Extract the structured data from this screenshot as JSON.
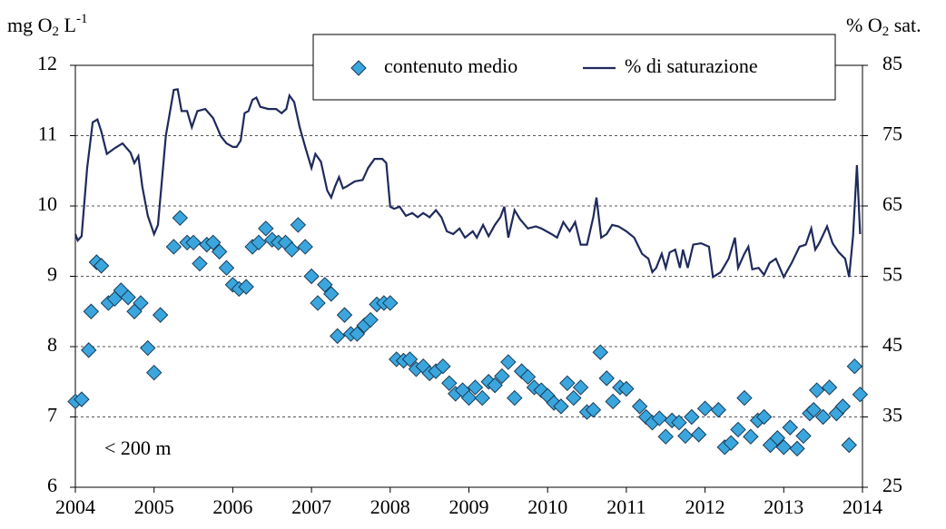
{
  "chart_data": {
    "type": "combo",
    "ylabel": [
      "mg O",
      "2",
      " L",
      "-1"
    ],
    "y2label": [
      "% O",
      "2",
      " sat."
    ],
    "annotation": "< 200 m",
    "xlim": [
      2004,
      2014
    ],
    "xticks": [
      2004,
      2005,
      2006,
      2007,
      2008,
      2009,
      2010,
      2011,
      2012,
      2013,
      2014
    ],
    "ylim": [
      6,
      12
    ],
    "yticks": [
      6,
      7,
      8,
      9,
      10,
      11,
      12
    ],
    "y2lim": [
      25,
      85
    ],
    "y2ticks": [
      25,
      35,
      45,
      55,
      65,
      75,
      85
    ],
    "grid": true,
    "series": [
      {
        "name": "contenuto medio",
        "type": "scatter",
        "color": "#3aa6dd",
        "x": [
          2004.0,
          2004.08,
          2004.17,
          2004.2,
          2004.27,
          2004.33,
          2004.42,
          2004.5,
          2004.58,
          2004.67,
          2004.75,
          2004.83,
          2004.92,
          2005.0,
          2005.08,
          2005.25,
          2005.33,
          2005.42,
          2005.5,
          2005.58,
          2005.67,
          2005.75,
          2005.83,
          2005.92,
          2006.0,
          2006.08,
          2006.17,
          2006.25,
          2006.33,
          2006.42,
          2006.5,
          2006.58,
          2006.67,
          2006.75,
          2006.83,
          2006.92,
          2007.0,
          2007.08,
          2007.17,
          2007.25,
          2007.33,
          2007.42,
          2007.5,
          2007.58,
          2007.67,
          2007.75,
          2007.83,
          2007.92,
          2008.0,
          2008.08,
          2008.17,
          2008.25,
          2008.33,
          2008.42,
          2008.5,
          2008.58,
          2008.67,
          2008.75,
          2008.83,
          2008.92,
          2009.0,
          2009.08,
          2009.17,
          2009.25,
          2009.33,
          2009.42,
          2009.5,
          2009.58,
          2009.67,
          2009.75,
          2009.83,
          2009.92,
          2010.0,
          2010.08,
          2010.17,
          2010.25,
          2010.33,
          2010.42,
          2010.5,
          2010.58,
          2010.67,
          2010.75,
          2010.83,
          2010.92,
          2011.0,
          2011.17,
          2011.25,
          2011.33,
          2011.42,
          2011.5,
          2011.58,
          2011.67,
          2011.75,
          2011.83,
          2011.92,
          2012.0,
          2012.17,
          2012.25,
          2012.33,
          2012.42,
          2012.5,
          2012.58,
          2012.67,
          2012.75,
          2012.83,
          2012.92,
          2013.0,
          2013.08,
          2013.17,
          2013.25,
          2013.33,
          2013.38,
          2013.42,
          2013.5,
          2013.58,
          2013.67,
          2013.75,
          2013.83,
          2013.9,
          2013.97
        ],
        "values": [
          7.22,
          7.25,
          7.95,
          8.5,
          9.2,
          9.15,
          8.62,
          8.68,
          8.8,
          8.7,
          8.5,
          8.62,
          7.98,
          7.63,
          8.45,
          9.42,
          9.83,
          9.48,
          9.48,
          9.18,
          9.45,
          9.48,
          9.35,
          9.12,
          8.88,
          8.82,
          8.85,
          9.42,
          9.48,
          9.68,
          9.52,
          9.48,
          9.48,
          9.38,
          9.73,
          9.42,
          9.0,
          8.62,
          8.88,
          8.75,
          8.15,
          8.45,
          8.18,
          8.18,
          8.3,
          8.38,
          8.6,
          8.62,
          8.62,
          7.82,
          7.8,
          7.82,
          7.68,
          7.72,
          7.62,
          7.65,
          7.72,
          7.48,
          7.33,
          7.38,
          7.27,
          7.42,
          7.27,
          7.5,
          7.45,
          7.58,
          7.78,
          7.27,
          7.65,
          7.57,
          7.42,
          7.38,
          7.3,
          7.2,
          7.15,
          7.48,
          7.27,
          7.42,
          7.07,
          7.1,
          7.92,
          7.55,
          7.22,
          7.42,
          7.4,
          7.15,
          7.0,
          6.92,
          6.98,
          6.72,
          6.95,
          6.92,
          6.73,
          7.0,
          6.75,
          7.12,
          7.1,
          6.57,
          6.63,
          6.82,
          7.27,
          6.72,
          6.95,
          7.0,
          6.6,
          6.7,
          6.57,
          6.85,
          6.55,
          6.73,
          7.05,
          7.1,
          7.38,
          7.0,
          7.42,
          7.05,
          7.15,
          6.6,
          7.72,
          7.32
        ]
      },
      {
        "name": "% di saturazione",
        "type": "line",
        "axis": "y2",
        "color": "#1f2a5c",
        "x": [
          2004.0,
          2004.03,
          2004.08,
          2004.15,
          2004.22,
          2004.28,
          2004.33,
          2004.4,
          2004.5,
          2004.6,
          2004.7,
          2004.75,
          2004.8,
          2004.85,
          2004.92,
          2005.0,
          2005.05,
          2005.15,
          2005.25,
          2005.3,
          2005.35,
          2005.42,
          2005.48,
          2005.55,
          2005.65,
          2005.75,
          2005.85,
          2005.92,
          2006.0,
          2006.05,
          2006.1,
          2006.15,
          2006.2,
          2006.25,
          2006.3,
          2006.35,
          2006.45,
          2006.55,
          2006.62,
          2006.68,
          2006.72,
          2006.78,
          2006.85,
          2006.92,
          2007.0,
          2007.05,
          2007.12,
          2007.2,
          2007.25,
          2007.3,
          2007.35,
          2007.4,
          2007.45,
          2007.55,
          2007.65,
          2007.72,
          2007.8,
          2007.9,
          2007.95,
          2008.0,
          2008.05,
          2008.12,
          2008.2,
          2008.28,
          2008.35,
          2008.42,
          2008.5,
          2008.58,
          2008.65,
          2008.72,
          2008.8,
          2008.88,
          2008.95,
          2009.05,
          2009.1,
          2009.18,
          2009.25,
          2009.33,
          2009.4,
          2009.45,
          2009.5,
          2009.58,
          2009.65,
          2009.75,
          2009.85,
          2009.92,
          2010.05,
          2010.12,
          2010.2,
          2010.28,
          2010.35,
          2010.42,
          2010.5,
          2010.58,
          2010.62,
          2010.68,
          2010.75,
          2010.82,
          2010.9,
          2011.0,
          2011.1,
          2011.2,
          2011.28,
          2011.33,
          2011.38,
          2011.45,
          2011.5,
          2011.55,
          2011.62,
          2011.68,
          2011.72,
          2011.78,
          2011.85,
          2011.95,
          2012.05,
          2012.1,
          2012.2,
          2012.3,
          2012.38,
          2012.42,
          2012.5,
          2012.55,
          2012.6,
          2012.68,
          2012.75,
          2012.82,
          2012.9,
          2013.0,
          2013.1,
          2013.2,
          2013.28,
          2013.35,
          2013.4,
          2013.45,
          2013.55,
          2013.62,
          2013.7,
          2013.78,
          2013.83,
          2013.88,
          2013.93,
          2013.97
        ],
        "values": [
          61.0,
          60.1,
          60.7,
          70.4,
          76.9,
          77.3,
          75.6,
          72.4,
          73.2,
          73.9,
          72.6,
          71.1,
          72.1,
          67.8,
          63.6,
          61.0,
          62.3,
          75.0,
          81.5,
          81.6,
          78.5,
          78.5,
          76.2,
          78.5,
          78.8,
          77.5,
          74.9,
          73.9,
          73.4,
          73.4,
          74.3,
          78.2,
          78.5,
          80.1,
          80.4,
          79.1,
          78.8,
          78.8,
          78.2,
          78.8,
          80.7,
          79.8,
          76.2,
          73.4,
          70.4,
          72.4,
          71.3,
          67.2,
          66.2,
          67.8,
          69.1,
          67.5,
          67.8,
          68.5,
          68.7,
          70.4,
          71.7,
          71.7,
          71.1,
          64.9,
          64.6,
          64.9,
          63.6,
          64.0,
          63.4,
          64.0,
          63.4,
          64.4,
          63.4,
          61.4,
          61.0,
          61.8,
          60.5,
          61.4,
          60.5,
          62.3,
          60.7,
          62.3,
          63.4,
          64.9,
          60.5,
          64.4,
          63.1,
          61.8,
          62.1,
          61.8,
          61.0,
          60.5,
          62.7,
          61.4,
          62.7,
          59.5,
          59.5,
          63.4,
          66.2,
          60.5,
          61.0,
          62.3,
          62.1,
          61.4,
          60.5,
          58.2,
          57.5,
          55.6,
          56.2,
          58.2,
          56.2,
          58.4,
          58.8,
          56.2,
          58.8,
          56.2,
          59.5,
          59.7,
          59.2,
          54.9,
          55.6,
          57.5,
          60.5,
          56.2,
          58.2,
          59.2,
          56.0,
          56.2,
          55.2,
          56.9,
          57.5,
          54.9,
          56.9,
          59.2,
          59.5,
          61.8,
          58.8,
          59.7,
          62.1,
          59.7,
          58.4,
          57.5,
          54.9,
          60.7,
          70.8,
          61.0
        ]
      }
    ]
  }
}
